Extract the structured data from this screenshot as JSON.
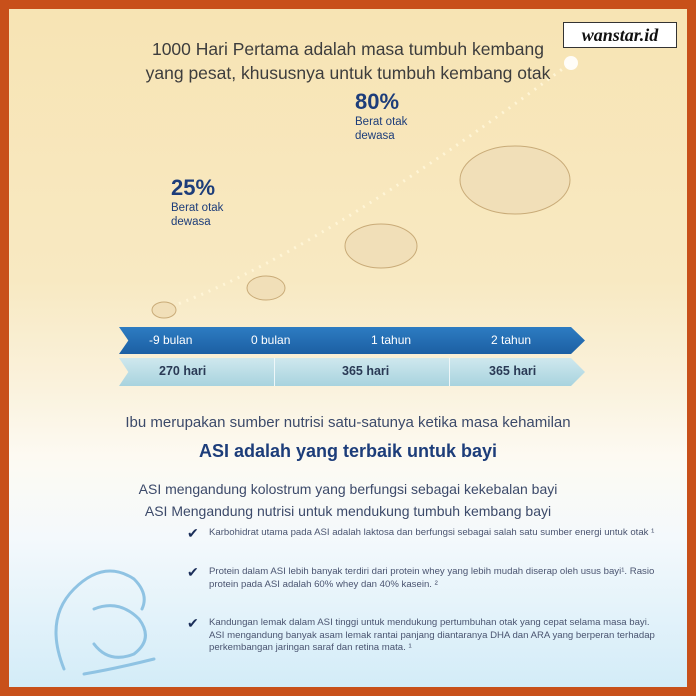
{
  "watermark": "wanstar.id",
  "title": {
    "line1": "1000 Hari Pertama adalah masa tumbuh kembang",
    "line2": "yang pesat, khususnya untuk tumbuh kembang otak"
  },
  "milestones": [
    {
      "percent": "25%",
      "label1": "Berat otak",
      "label2": "dewasa"
    },
    {
      "percent": "80%",
      "label1": "Berat otak",
      "label2": "dewasa"
    }
  ],
  "timeline": {
    "points": [
      "-9 bulan",
      "0 bulan",
      "1 tahun",
      "2 tahun"
    ],
    "durations": [
      "270 hari",
      "365 hari",
      "365 hari"
    ]
  },
  "subtitle": "Ibu merupakan sumber nutrisi satu-satunya ketika masa kehamilan",
  "headline": "ASI adalah yang terbaik untuk bayi",
  "statements": [
    "ASI mengandung kolostrum yang berfungsi sebagai kekebalan bayi",
    "ASI Mengandung nutrisi untuk mendukung tumbuh kembang bayi"
  ],
  "bullets": [
    "Karbohidrat utama pada ASI adalah laktosa dan berfungsi sebagai salah satu sumber energi untuk otak ¹",
    "Protein dalam ASI lebih banyak terdiri dari protein whey yang lebih mudah diserap oleh usus bayi¹. Rasio protein pada ASI adalah 60% whey dan 40% kasein. ²",
    "Kandungan lemak dalam ASI tinggi untuk mendukung pertumbuhan otak yang cepat selama masa bayi. ASI mengandung banyak asam lemak rantai panjang diantaranya DHA dan ARA yang berperan terhadap perkembangan jaringan saraf dan retina mata. ¹"
  ],
  "colors": {
    "border": "#c8501a",
    "navy": "#1d3d7a",
    "band": "#1c5fa3"
  }
}
